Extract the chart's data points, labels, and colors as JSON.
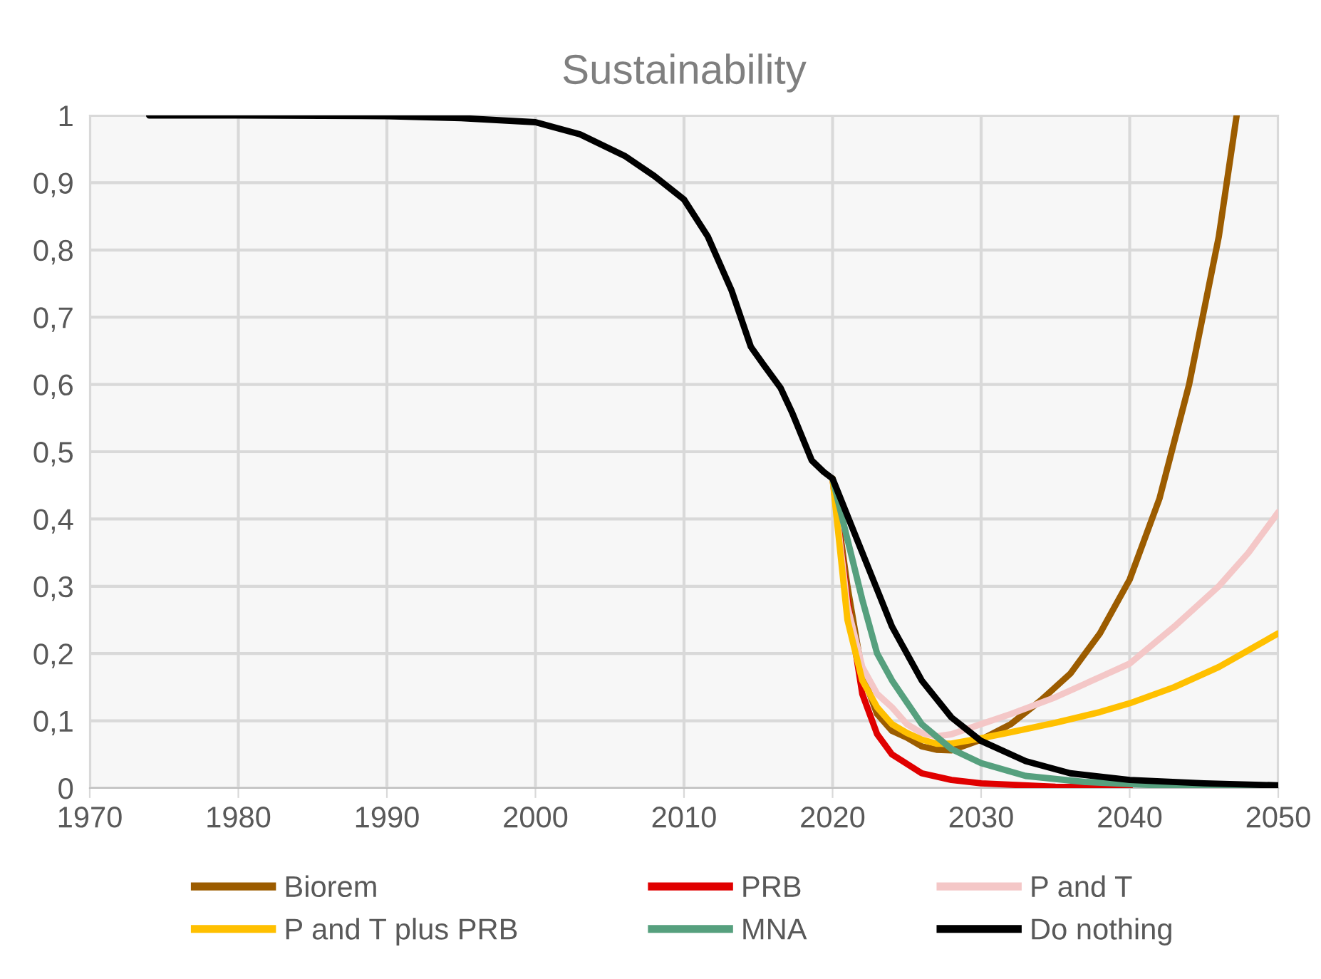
{
  "chart_data": {
    "type": "line",
    "title": "Sustainability",
    "xlim": [
      1970,
      2050
    ],
    "ylim": [
      0,
      1
    ],
    "xticks": [
      1970,
      1980,
      1990,
      2000,
      2010,
      2020,
      2030,
      2040,
      2050
    ],
    "yticks": [
      {
        "value": 0,
        "label": "0"
      },
      {
        "value": 0.1,
        "label": "0,1"
      },
      {
        "value": 0.2,
        "label": "0,2"
      },
      {
        "value": 0.3,
        "label": "0,3"
      },
      {
        "value": 0.4,
        "label": "0,4"
      },
      {
        "value": 0.5,
        "label": "0,5"
      },
      {
        "value": 0.6,
        "label": "0,6"
      },
      {
        "value": 0.7,
        "label": "0,7"
      },
      {
        "value": 0.8,
        "label": "0,8"
      },
      {
        "value": 0.9,
        "label": "0,9"
      },
      {
        "value": 1,
        "label": "1"
      }
    ],
    "grid": true,
    "legend": "bottom",
    "marker": "none",
    "line_style": "solid",
    "series": [
      {
        "name": "Biorem",
        "color": "#9c5c00",
        "x": [
          2020,
          2021,
          2022,
          2023,
          2024,
          2025,
          2026,
          2027,
          2028,
          2030,
          2032,
          2034,
          2036,
          2038,
          2040,
          2042,
          2044,
          2046,
          2047.2
        ],
        "values": [
          0.46,
          0.3,
          0.17,
          0.11,
          0.085,
          0.075,
          0.062,
          0.057,
          0.056,
          0.072,
          0.095,
          0.13,
          0.17,
          0.23,
          0.31,
          0.43,
          0.6,
          0.82,
          1.0
        ]
      },
      {
        "name": "PRB",
        "color": "#e00000",
        "x": [
          2020,
          2021,
          2022,
          2023,
          2024,
          2026,
          2028,
          2030,
          2035,
          2040
        ],
        "values": [
          0.46,
          0.28,
          0.14,
          0.08,
          0.05,
          0.022,
          0.012,
          0.007,
          0.002,
          0.001
        ]
      },
      {
        "name": "P and T",
        "color": "#f4c7c7",
        "x": [
          2020,
          2021,
          2022,
          2023,
          2024,
          2025,
          2026,
          2027,
          2028,
          2030,
          2032,
          2035,
          2038,
          2040,
          2043,
          2046,
          2048,
          2050
        ],
        "values": [
          0.46,
          0.27,
          0.18,
          0.14,
          0.12,
          0.095,
          0.082,
          0.077,
          0.08,
          0.095,
          0.11,
          0.135,
          0.165,
          0.185,
          0.24,
          0.3,
          0.35,
          0.41
        ]
      },
      {
        "name": "P and T plus PRB",
        "color": "#ffc000",
        "x": [
          2020,
          2021,
          2022,
          2023,
          2024,
          2025,
          2026,
          2027,
          2028,
          2030,
          2032,
          2035,
          2038,
          2040,
          2043,
          2046,
          2050
        ],
        "values": [
          0.46,
          0.25,
          0.16,
          0.12,
          0.095,
          0.082,
          0.072,
          0.066,
          0.066,
          0.074,
          0.083,
          0.097,
          0.113,
          0.126,
          0.15,
          0.18,
          0.23
        ]
      },
      {
        "name": "MNA",
        "color": "#56a07e",
        "x": [
          2020,
          2021,
          2022,
          2023,
          2024,
          2026,
          2028,
          2030,
          2033,
          2037,
          2042,
          2050
        ],
        "values": [
          0.46,
          0.37,
          0.28,
          0.2,
          0.16,
          0.095,
          0.058,
          0.037,
          0.018,
          0.009,
          0.004,
          0.002
        ]
      },
      {
        "name": "Do nothing",
        "color": "#000000",
        "x": [
          1974,
          1980,
          1990,
          1995,
          2000,
          2003,
          2006,
          2008,
          2010,
          2011.6,
          2013.2,
          2014.5,
          2015.4,
          2016.5,
          2017.3,
          2018.6,
          2019.4,
          2020,
          2022,
          2024,
          2026,
          2028,
          2030,
          2033,
          2036,
          2040,
          2045,
          2050
        ],
        "values": [
          1,
          1,
          0.999,
          0.996,
          0.99,
          0.972,
          0.94,
          0.91,
          0.875,
          0.82,
          0.74,
          0.656,
          0.628,
          0.595,
          0.557,
          0.487,
          0.47,
          0.46,
          0.35,
          0.24,
          0.16,
          0.105,
          0.07,
          0.04,
          0.022,
          0.012,
          0.007,
          0.004
        ]
      }
    ]
  }
}
